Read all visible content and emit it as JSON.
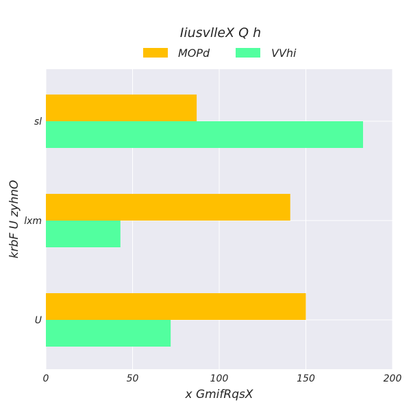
{
  "chart_data": {
    "type": "bar",
    "orientation": "horizontal",
    "title": "IiusvlleX Q h",
    "xlabel": "x GmifRqsX",
    "ylabel": "krbF  U zyhnO",
    "categories": [
      "sl",
      "lxm",
      "U"
    ],
    "series": [
      {
        "name": "MOPd",
        "color": "#ffbf00",
        "values": [
          87,
          141,
          150
        ]
      },
      {
        "name": "VVhi",
        "color": "#52ff9f",
        "values": [
          183,
          43,
          72
        ]
      }
    ],
    "xlim": [
      0,
      200
    ],
    "xticks": [
      0,
      50,
      100,
      150,
      200
    ],
    "grid": true,
    "legend_placement": "top-center"
  }
}
